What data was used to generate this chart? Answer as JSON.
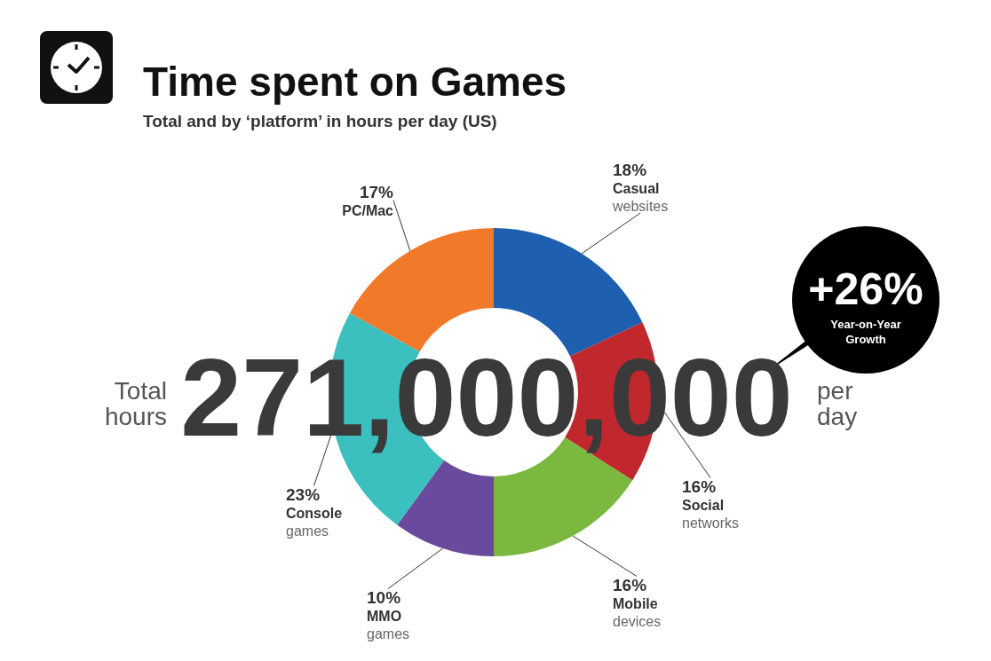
{
  "chart_data": {
    "type": "donut",
    "title": "Time spent on Games",
    "subtitle": "Total and by ‘platform’ in hours per day (US)",
    "categories": [
      "Casual websites",
      "Social networks",
      "Mobile devices",
      "MMO games",
      "Console games",
      "PC/Mac"
    ],
    "values": [
      18,
      16,
      16,
      10,
      23,
      17
    ],
    "value_labels": [
      "18%",
      "16%",
      "16%",
      "10%",
      "23%",
      "17%"
    ],
    "colors": [
      "#1f5fb0",
      "#c0282d",
      "#7ab840",
      "#6a4a9c",
      "#3bbfbf",
      "#f07a2a"
    ],
    "legend": false,
    "annotations": [
      "Total hours",
      "271,000,000",
      "per day",
      "+26%",
      "Year-on-Year Growth"
    ]
  }
}
